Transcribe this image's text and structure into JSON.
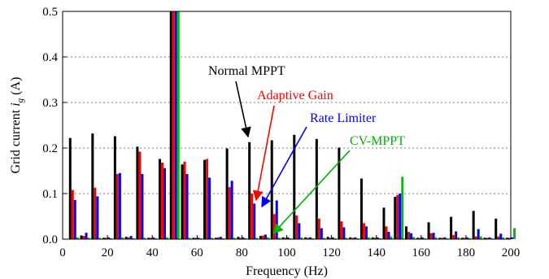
{
  "chart_data": {
    "type": "bar",
    "xlabel": "Frequency (Hz)",
    "ylabel_prefix": "Grid current ",
    "ylabel_var": "i",
    "ylabel_sub": "g",
    "ylabel_suffix": " (A)",
    "xlim": [
      0,
      200
    ],
    "ylim": [
      0,
      0.5
    ],
    "xticks": [
      0,
      20,
      40,
      60,
      80,
      100,
      120,
      140,
      160,
      180,
      200
    ],
    "yticks": [
      0.0,
      0.1,
      0.2,
      0.3,
      0.4,
      0.5
    ],
    "xtick_labels": [
      "0",
      "20",
      "40",
      "60",
      "80",
      "100",
      "120",
      "140",
      "160",
      "180",
      "200"
    ],
    "ytick_labels": [
      "0.0",
      "0.1",
      "0.2",
      "0.3",
      "0.4",
      "0.5"
    ],
    "grid": "y-major",
    "x": [
      5,
      10,
      15,
      20,
      25,
      30,
      35,
      40,
      45,
      50,
      55,
      60,
      65,
      70,
      75,
      80,
      85,
      90,
      95,
      100,
      105,
      110,
      115,
      120,
      125,
      130,
      135,
      140,
      145,
      150,
      155,
      160,
      165,
      170,
      175,
      180,
      185,
      190,
      195,
      200
    ],
    "series": [
      {
        "color": "#000000",
        "values": [
          0.222,
          0.008,
          0.232,
          0.003,
          0.226,
          0.005,
          0.203,
          0.003,
          0.176,
          0.5,
          0.164,
          0.003,
          0.174,
          0.003,
          0.199,
          0.005,
          0.213,
          0.007,
          0.217,
          0.004,
          0.229,
          0.004,
          0.22,
          0.005,
          0.201,
          0.004,
          0.133,
          0.004,
          0.069,
          0.093,
          0.028,
          0.003,
          0.037,
          0.003,
          0.049,
          0.003,
          0.062,
          0.003,
          0.045,
          0.003
        ]
      },
      {
        "color": "#ff0000",
        "values": [
          0.108,
          0.007,
          0.113,
          0.003,
          0.143,
          0.004,
          0.192,
          0.003,
          0.168,
          0.5,
          0.17,
          0.003,
          0.176,
          0.004,
          0.114,
          0.003,
          0.1,
          0.008,
          0.055,
          0.003,
          0.052,
          0.003,
          0.045,
          0.003,
          0.039,
          0.003,
          0.035,
          0.003,
          0.028,
          0.097,
          0.016,
          0.003,
          0.013,
          0.003,
          0.009,
          0.003,
          0.006,
          0.003,
          0.006,
          0.003
        ]
      },
      {
        "color": "#0000ff",
        "values": [
          0.086,
          0.014,
          0.094,
          0.004,
          0.145,
          0.007,
          0.143,
          0.004,
          0.156,
          0.5,
          0.143,
          0.003,
          0.135,
          0.005,
          0.128,
          0.004,
          0.078,
          0.01,
          0.085,
          0.004,
          0.035,
          0.004,
          0.024,
          0.004,
          0.026,
          0.004,
          0.028,
          0.004,
          0.016,
          0.1,
          0.013,
          0.004,
          0.014,
          0.004,
          0.017,
          0.004,
          0.022,
          0.004,
          0.012,
          0.004
        ]
      },
      {
        "color": "#00c000",
        "values": [
          0.004,
          0.003,
          0.003,
          0.002,
          0.004,
          0.002,
          0.003,
          0.002,
          0.004,
          0.5,
          0.003,
          0.002,
          0.003,
          0.002,
          0.003,
          0.002,
          0.003,
          0.004,
          0.003,
          0.002,
          0.004,
          0.002,
          0.003,
          0.002,
          0.003,
          0.002,
          0.004,
          0.002,
          0.006,
          0.137,
          0.005,
          0.002,
          0.004,
          0.002,
          0.004,
          0.002,
          0.006,
          0.002,
          0.004,
          0.024
        ]
      }
    ],
    "annotations": [
      {
        "text": "Normal MPPT",
        "color": "#000000"
      },
      {
        "text": "Adaptive Gain",
        "color": "#ff0000"
      },
      {
        "text": "Rate Limiter",
        "color": "#0000ff"
      },
      {
        "text": "CV-MPPT",
        "color": "#00b000"
      }
    ]
  }
}
